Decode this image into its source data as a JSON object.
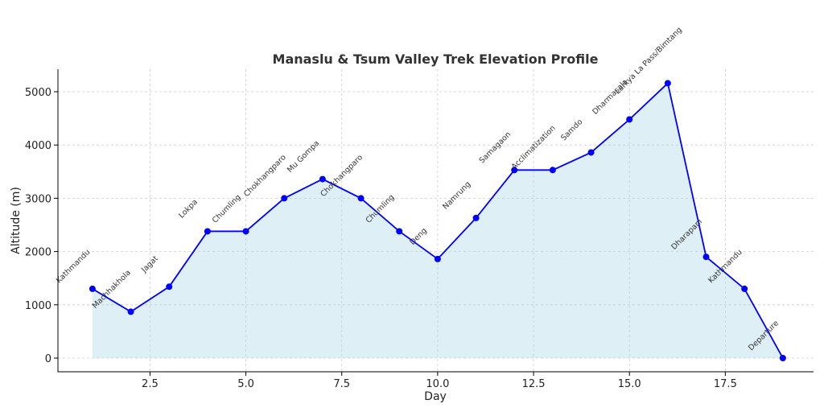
{
  "chart_data": {
    "type": "line",
    "title": "Manaslu & Tsum Valley Trek Elevation Profile",
    "xlabel": "Day",
    "ylabel": "Altitude (m)",
    "xlim": [
      0.1,
      19.8
    ],
    "ylim": [
      -257,
      5423
    ],
    "xticks": [
      2.5,
      5.0,
      7.5,
      10.0,
      12.5,
      15.0,
      17.5
    ],
    "xtick_labels": [
      "2.5",
      "5.0",
      "7.5",
      "10.0",
      "12.5",
      "15.0",
      "17.5"
    ],
    "yticks": [
      0,
      1000,
      2000,
      3000,
      4000,
      5000
    ],
    "ytick_labels": [
      "0",
      "1000",
      "2000",
      "3000",
      "4000",
      "5000"
    ],
    "grid": true,
    "fill_color": "#add8e6",
    "line_color": "#0000ff",
    "x": [
      1,
      2,
      3,
      4,
      5,
      6,
      7,
      8,
      9,
      10,
      11,
      12,
      13,
      14,
      15,
      16,
      17,
      18,
      19
    ],
    "values": [
      1300,
      870,
      1340,
      2380,
      2380,
      3000,
      3360,
      3000,
      2380,
      1860,
      2630,
      3530,
      3530,
      3860,
      4480,
      5160,
      1900,
      1300,
      0
    ],
    "point_labels": [
      "Kathmandu",
      "Machhakhola",
      "Jagat",
      "Lokpa",
      "Chumling",
      "Chokhangparo",
      "Mu Gompa",
      "Chokhangparo",
      "Chumling",
      "Deng",
      "Namrung",
      "Samagaon",
      "Acclimatization",
      "Samdo",
      "Dharmasala",
      "Larkya La Pass/Bimtang",
      "Dharapani",
      "Kathmandu",
      "Departure"
    ]
  }
}
